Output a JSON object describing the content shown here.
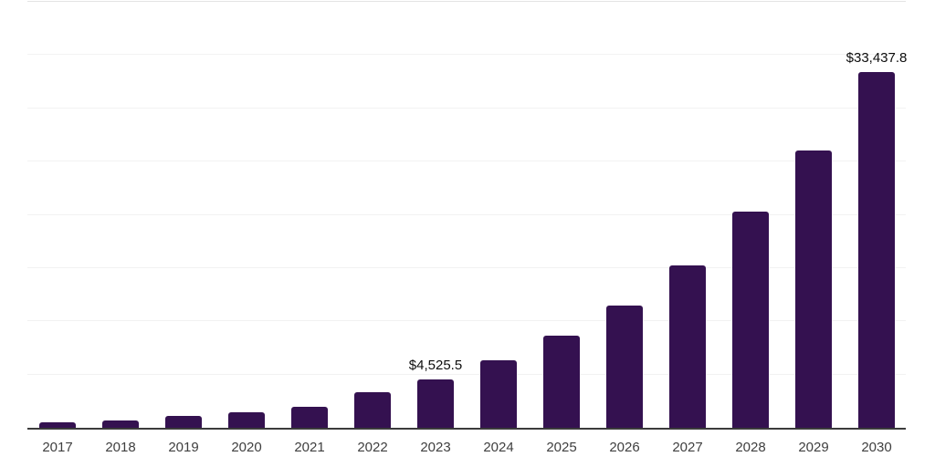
{
  "chart": {
    "background": "#ffffff",
    "bar_color": "#341150",
    "axis_line_color": "#3b3b3b",
    "gridline_color": "#f2f2f2",
    "top_gridline_color": "#e4e4e4",
    "x_label_color": "#3f3f3f",
    "value_label_color": "#0d0d0d"
  },
  "chart_data": {
    "type": "bar",
    "title": "",
    "xlabel": "",
    "ylabel": "",
    "legend": "none",
    "grid": "horizontal",
    "ylim": [
      0,
      40000
    ],
    "grid_step": 5000,
    "categories": [
      "2017",
      "2018",
      "2019",
      "2020",
      "2021",
      "2022",
      "2023",
      "2024",
      "2025",
      "2026",
      "2027",
      "2028",
      "2029",
      "2030"
    ],
    "values": [
      490,
      680,
      1080,
      1450,
      1950,
      3350,
      4525.5,
      6310,
      8650,
      11480,
      15230,
      20280,
      26060,
      33437.8
    ],
    "point_labels": {
      "2023": "$4,525.5",
      "2030": "$33,437.8"
    }
  }
}
